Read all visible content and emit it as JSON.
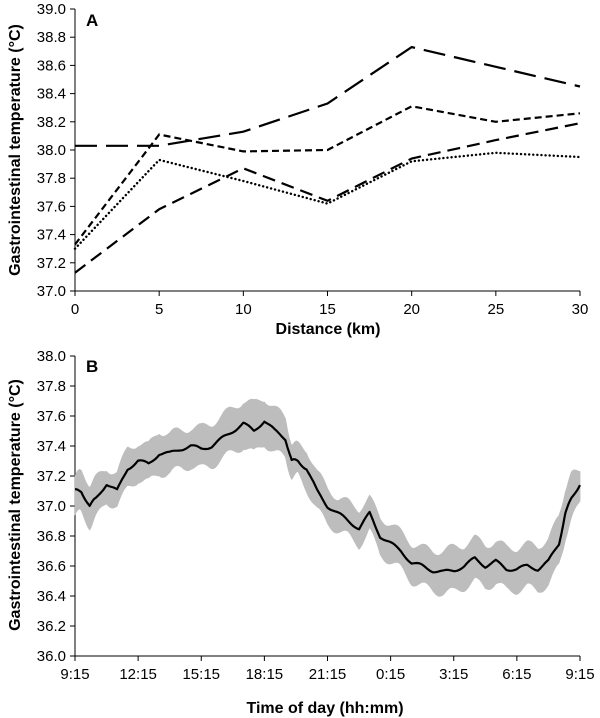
{
  "chart_data": [
    {
      "panel_label": "A",
      "type": "line",
      "xlabel": "Distance (km)",
      "ylabel": "Gastrointestinal temperature (°C)",
      "xlim": [
        0,
        30
      ],
      "ylim": [
        37.0,
        39.0
      ],
      "xticks": [
        "0",
        "5",
        "10",
        "15",
        "20",
        "25",
        "30"
      ],
      "yticks": [
        "37.0",
        "37.2",
        "37.4",
        "37.6",
        "37.8",
        "38.0",
        "38.2",
        "38.4",
        "38.6",
        "38.8",
        "39.0"
      ],
      "grid": false,
      "legend": "none",
      "x": [
        0,
        5,
        10,
        15,
        20,
        25,
        30
      ],
      "series": [
        {
          "name": "long-dash",
          "dash": "long-dash",
          "values": [
            38.03,
            38.03,
            38.13,
            38.33,
            38.73,
            38.59,
            38.45
          ]
        },
        {
          "name": "short-dash",
          "dash": "short-dash",
          "values": [
            37.33,
            38.11,
            37.99,
            38.0,
            38.31,
            38.2,
            38.26
          ]
        },
        {
          "name": "medium-dash",
          "dash": "medium-dash",
          "values": [
            37.13,
            37.58,
            37.87,
            37.64,
            37.94,
            38.07,
            38.19
          ]
        },
        {
          "name": "dotted",
          "dash": "dotted",
          "values": [
            37.3,
            37.93,
            37.78,
            37.62,
            37.92,
            37.98,
            37.95
          ]
        }
      ]
    },
    {
      "panel_label": "B",
      "type": "line",
      "xlabel": "Time of day (hh:mm)",
      "ylabel": "Gastrointestinal temperature (°C)",
      "xlim": [
        0,
        24
      ],
      "ylim": [
        36.0,
        38.0
      ],
      "xticks": [
        "9:15",
        "12:15",
        "15:15",
        "18:15",
        "21:15",
        "0:15",
        "3:15",
        "6:15",
        "9:15"
      ],
      "yticks": [
        "36.0",
        "36.2",
        "36.4",
        "36.6",
        "36.8",
        "37.0",
        "37.2",
        "37.4",
        "37.6",
        "37.8",
        "38.0"
      ],
      "grid": false,
      "legend": "none",
      "x_hours_since_9_15": [
        0,
        0.3,
        0.7,
        1.0,
        1.5,
        2.0,
        2.5,
        3.0,
        3.5,
        4.0,
        4.5,
        5.0,
        5.5,
        6.0,
        6.5,
        7.0,
        7.5,
        8.0,
        8.5,
        9.0,
        9.5,
        10.0,
        10.3,
        10.6,
        11.0,
        11.5,
        12.0,
        12.5,
        13.0,
        13.5,
        14.0,
        14.5,
        15.0,
        15.5,
        16.0,
        16.5,
        17.0,
        17.5,
        18.0,
        18.5,
        19.0,
        19.5,
        20.0,
        20.5,
        21.0,
        21.5,
        22.0,
        22.5,
        23.0,
        23.3,
        23.6,
        24.0
      ],
      "series": [
        {
          "name": "mean",
          "values": [
            37.1,
            37.1,
            37.0,
            37.05,
            37.15,
            37.1,
            37.25,
            37.3,
            37.28,
            37.35,
            37.35,
            37.38,
            37.4,
            37.38,
            37.4,
            37.45,
            37.5,
            37.55,
            37.5,
            37.57,
            37.5,
            37.45,
            37.3,
            37.3,
            37.25,
            37.1,
            37.0,
            36.95,
            36.9,
            36.85,
            36.95,
            36.8,
            36.75,
            36.7,
            36.62,
            36.6,
            36.57,
            36.56,
            36.57,
            36.6,
            36.65,
            36.6,
            36.63,
            36.58,
            36.58,
            36.6,
            36.58,
            36.63,
            36.75,
            36.95,
            37.05,
            37.15
          ]
        },
        {
          "name": "upper band",
          "values": [
            37.2,
            37.22,
            37.15,
            37.18,
            37.25,
            37.22,
            37.38,
            37.42,
            37.4,
            37.5,
            37.48,
            37.5,
            37.52,
            37.52,
            37.55,
            37.6,
            37.65,
            37.7,
            37.68,
            37.72,
            37.65,
            37.58,
            37.42,
            37.4,
            37.38,
            37.22,
            37.12,
            37.05,
            37.02,
            36.98,
            37.05,
            36.92,
            36.88,
            36.82,
            36.75,
            36.72,
            36.7,
            36.7,
            36.72,
            36.74,
            36.78,
            36.74,
            36.76,
            36.72,
            36.72,
            36.74,
            36.73,
            36.78,
            36.92,
            37.12,
            37.2,
            37.25
          ]
        },
        {
          "name": "lower band",
          "values": [
            36.95,
            36.95,
            36.87,
            36.92,
            37.03,
            37.0,
            37.12,
            37.18,
            37.16,
            37.22,
            37.22,
            37.25,
            37.27,
            37.25,
            37.27,
            37.32,
            37.36,
            37.4,
            37.35,
            37.42,
            37.36,
            37.32,
            37.2,
            37.2,
            37.12,
            36.98,
            36.88,
            36.84,
            36.8,
            36.74,
            36.84,
            36.68,
            36.63,
            36.58,
            36.5,
            36.47,
            36.44,
            36.42,
            36.43,
            36.46,
            36.5,
            36.46,
            36.49,
            36.44,
            36.44,
            36.46,
            36.44,
            36.48,
            36.6,
            36.8,
            36.9,
            37.05
          ]
        }
      ]
    }
  ]
}
